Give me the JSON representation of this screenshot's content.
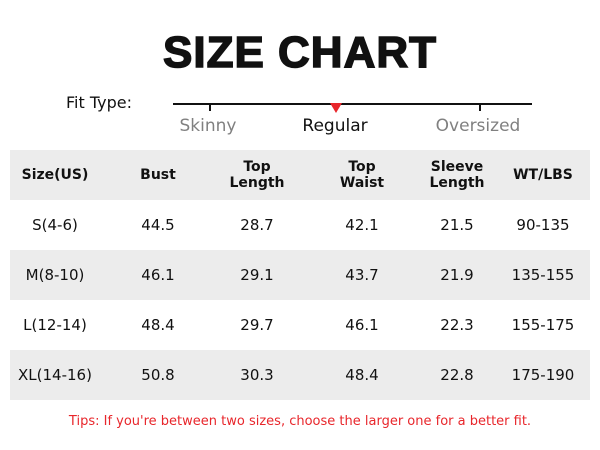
{
  "title": "SIZE CHART",
  "fit_type": {
    "label": "Fit Type:",
    "options": [
      "Skinny",
      "Regular",
      "Oversized"
    ],
    "selected": "Regular",
    "colors": {
      "selected_text": "#111111",
      "unselected_text": "#808080",
      "marker": "#e8262b"
    }
  },
  "table": {
    "headers": [
      [
        "Size(US)"
      ],
      [
        "Bust"
      ],
      [
        "Top",
        "Length"
      ],
      [
        "Top",
        "Waist"
      ],
      [
        "Sleeve",
        "Length"
      ],
      [
        "WT/LBS"
      ]
    ],
    "rows": [
      [
        "S(4-6)",
        "44.5",
        "28.7",
        "42.1",
        "21.5",
        "90-135"
      ],
      [
        "M(8-10)",
        "46.1",
        "29.1",
        "43.7",
        "21.9",
        "135-155"
      ],
      [
        "L(12-14)",
        "48.4",
        "29.7",
        "46.1",
        "22.3",
        "155-175"
      ],
      [
        "XL(14-16)",
        "50.8",
        "30.3",
        "48.4",
        "22.8",
        "175-190"
      ]
    ]
  },
  "tips": "Tips: If you're between two sizes, choose the larger one for a better fit.",
  "colors": {
    "stripe": "#ececec",
    "accent": "#e8262b"
  }
}
